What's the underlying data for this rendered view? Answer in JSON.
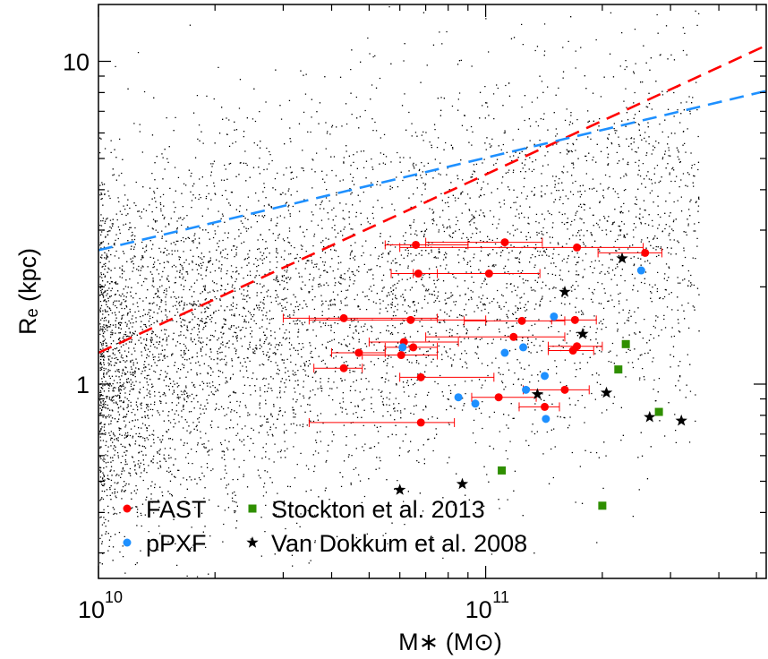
{
  "chart_data": {
    "type": "scatter",
    "x_scale": "log",
    "y_scale": "log",
    "xlim": [
      10000000000.0,
      530000000000.0
    ],
    "ylim": [
      0.25,
      15
    ],
    "xlabel": "M∗ (M⊙)",
    "ylabel": "Rₑ (kpc)",
    "x_ticks": [
      {
        "value": 10000000000.0,
        "label": "10",
        "exp": "10"
      },
      {
        "value": 100000000000.0,
        "label": "10",
        "exp": "11"
      }
    ],
    "y_ticks": [
      {
        "value": 1,
        "label": "1"
      },
      {
        "value": 10,
        "label": "10"
      }
    ],
    "legend": {
      "position": "bottom-left",
      "entries": [
        {
          "label": "FAST",
          "marker": "circle",
          "color": "#ff0000"
        },
        {
          "label": "Stockton et al. 2013",
          "marker": "square",
          "color": "#2f8f00"
        },
        {
          "label": "pPXF",
          "marker": "circle",
          "color": "#1e90ff"
        },
        {
          "label": "Van Dokkum et al. 2008",
          "marker": "star",
          "color": "#000000"
        }
      ]
    },
    "background_cloud": {
      "marker": "dot",
      "color": "#000000",
      "n_points": 6000,
      "note_shown": "dense black points"
    },
    "relations": [
      {
        "color": "#ff0000",
        "dash": true,
        "points": [
          [
            10000000000.0,
            1.25
          ],
          [
            530000000000.0,
            11.2
          ]
        ]
      },
      {
        "color": "#1e90ff",
        "dash": true,
        "points": [
          [
            10000000000.0,
            2.6
          ],
          [
            530000000000.0,
            8.1
          ]
        ]
      }
    ],
    "series": [
      {
        "name": "FAST",
        "marker": "circle",
        "color": "#ff0000",
        "points": [
          {
            "x": 66000000000.0,
            "y": 2.7,
            "xerr": [
              55000000000.0,
              90000000000.0
            ]
          },
          {
            "x": 112000000000.0,
            "y": 2.75,
            "xerr": [
              70000000000.0,
              140000000000.0
            ]
          },
          {
            "x": 172000000000.0,
            "y": 2.65,
            "xerr": [
              60000000000.0,
              255000000000.0
            ]
          },
          {
            "x": 258000000000.0,
            "y": 2.55,
            "xerr": [
              195000000000.0,
              285000000000.0
            ]
          },
          {
            "x": 67000000000.0,
            "y": 2.2,
            "xerr": [
              57000000000.0,
              75000000000.0
            ]
          },
          {
            "x": 102000000000.0,
            "y": 2.2,
            "xerr": [
              65000000000.0,
              138000000000.0
            ]
          },
          {
            "x": 43000000000.0,
            "y": 1.6,
            "xerr": [
              30000000000.0,
              75000000000.0
            ]
          },
          {
            "x": 64000000000.0,
            "y": 1.58,
            "xerr": [
              35000000000.0,
              100000000000.0
            ]
          },
          {
            "x": 124000000000.0,
            "y": 1.57,
            "xerr": [
              88000000000.0,
              160000000000.0
            ]
          },
          {
            "x": 170000000000.0,
            "y": 1.58,
            "xerr": [
              148000000000.0,
              193000000000.0
            ]
          },
          {
            "x": 118000000000.0,
            "y": 1.4,
            "xerr": [
              70000000000.0,
              160000000000.0
            ]
          },
          {
            "x": 61500000000.0,
            "y": 1.35,
            "xerr": [
              50000000000.0,
              85000000000.0
            ]
          },
          {
            "x": 65000000000.0,
            "y": 1.3,
            "xerr": [
              55000000000.0,
              75000000000.0
            ]
          },
          {
            "x": 172000000000.0,
            "y": 1.31,
            "xerr": [
              145000000000.0,
              200000000000.0
            ]
          },
          {
            "x": 168000000000.0,
            "y": 1.27,
            "xerr": [
              145000000000.0,
              190000000000.0
            ]
          },
          {
            "x": 47000000000.0,
            "y": 1.25,
            "xerr": [
              40000000000.0,
              55000000000.0
            ]
          },
          {
            "x": 60500000000.0,
            "y": 1.23,
            "xerr": [
              48000000000.0,
              75000000000.0
            ]
          },
          {
            "x": 43000000000.0,
            "y": 1.12,
            "xerr": [
              36000000000.0,
              48000000000.0
            ]
          },
          {
            "x": 68000000000.0,
            "y": 1.05,
            "xerr": [
              60000000000.0,
              105000000000.0
            ]
          },
          {
            "x": 160000000000.0,
            "y": 0.96,
            "xerr": [
              125000000000.0,
              185000000000.0
            ]
          },
          {
            "x": 108000000000.0,
            "y": 0.91,
            "xerr": [
              92000000000.0,
              135000000000.0
            ]
          },
          {
            "x": 142000000000.0,
            "y": 0.85,
            "xerr": [
              122000000000.0,
              155000000000.0
            ]
          },
          {
            "x": 68000000000.0,
            "y": 0.76,
            "xerr": [
              35000000000.0,
              83000000000.0
            ]
          }
        ]
      },
      {
        "name": "pPXF",
        "marker": "circle",
        "color": "#1e90ff",
        "points": [
          {
            "x": 252000000000.0,
            "y": 2.25
          },
          {
            "x": 150000000000.0,
            "y": 1.62
          },
          {
            "x": 61000000000.0,
            "y": 1.3
          },
          {
            "x": 125000000000.0,
            "y": 1.3
          },
          {
            "x": 112000000000.0,
            "y": 1.25
          },
          {
            "x": 142000000000.0,
            "y": 1.06
          },
          {
            "x": 127000000000.0,
            "y": 0.96
          },
          {
            "x": 85000000000.0,
            "y": 0.91
          },
          {
            "x": 94000000000.0,
            "y": 0.87
          },
          {
            "x": 143000000000.0,
            "y": 0.78
          }
        ]
      },
      {
        "name": "Stockton et al. 2013",
        "marker": "square",
        "color": "#2f8f00",
        "points": [
          {
            "x": 230000000000.0,
            "y": 1.33
          },
          {
            "x": 220000000000.0,
            "y": 1.11
          },
          {
            "x": 280000000000.0,
            "y": 0.82
          },
          {
            "x": 110000000000.0,
            "y": 0.54
          },
          {
            "x": 200000000000.0,
            "y": 0.42
          }
        ]
      },
      {
        "name": "Van Dokkum et al. 2008",
        "marker": "star",
        "color": "#000000",
        "points": [
          {
            "x": 225000000000.0,
            "y": 2.45
          },
          {
            "x": 160000000000.0,
            "y": 1.93
          },
          {
            "x": 178000000000.0,
            "y": 1.43
          },
          {
            "x": 136000000000.0,
            "y": 0.93
          },
          {
            "x": 205000000000.0,
            "y": 0.94
          },
          {
            "x": 265000000000.0,
            "y": 0.79
          },
          {
            "x": 320000000000.0,
            "y": 0.77
          },
          {
            "x": 60000000000.0,
            "y": 0.47
          },
          {
            "x": 87000000000.0,
            "y": 0.49
          }
        ]
      }
    ]
  }
}
